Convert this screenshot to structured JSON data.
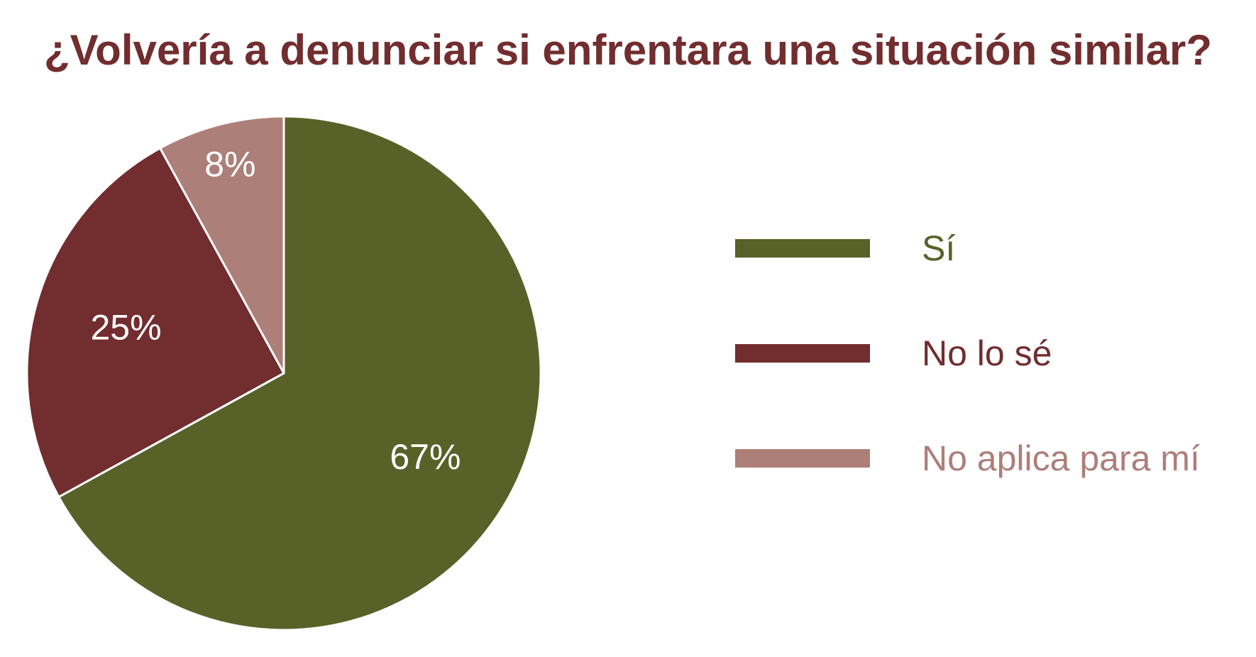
{
  "colors": {
    "title": "#722d2e",
    "background": "#ffffff",
    "separator": "#ffffff",
    "data_label": "#ffffff"
  },
  "chart_data": {
    "type": "pie",
    "title": "¿Volvería a denunciar si enfrentara una situación similar?",
    "slices": [
      {
        "label": "Sí",
        "value": 67,
        "display": "67%",
        "color": "#586128"
      },
      {
        "label": "No lo sé",
        "value": 25,
        "display": "25%",
        "color": "#722d2e"
      },
      {
        "label": "No aplica para mí",
        "value": 8,
        "display": "8%",
        "color": "#ad7f79"
      }
    ],
    "start_angle": "12 o'clock",
    "direction": "clockwise",
    "legend_position": "right"
  }
}
